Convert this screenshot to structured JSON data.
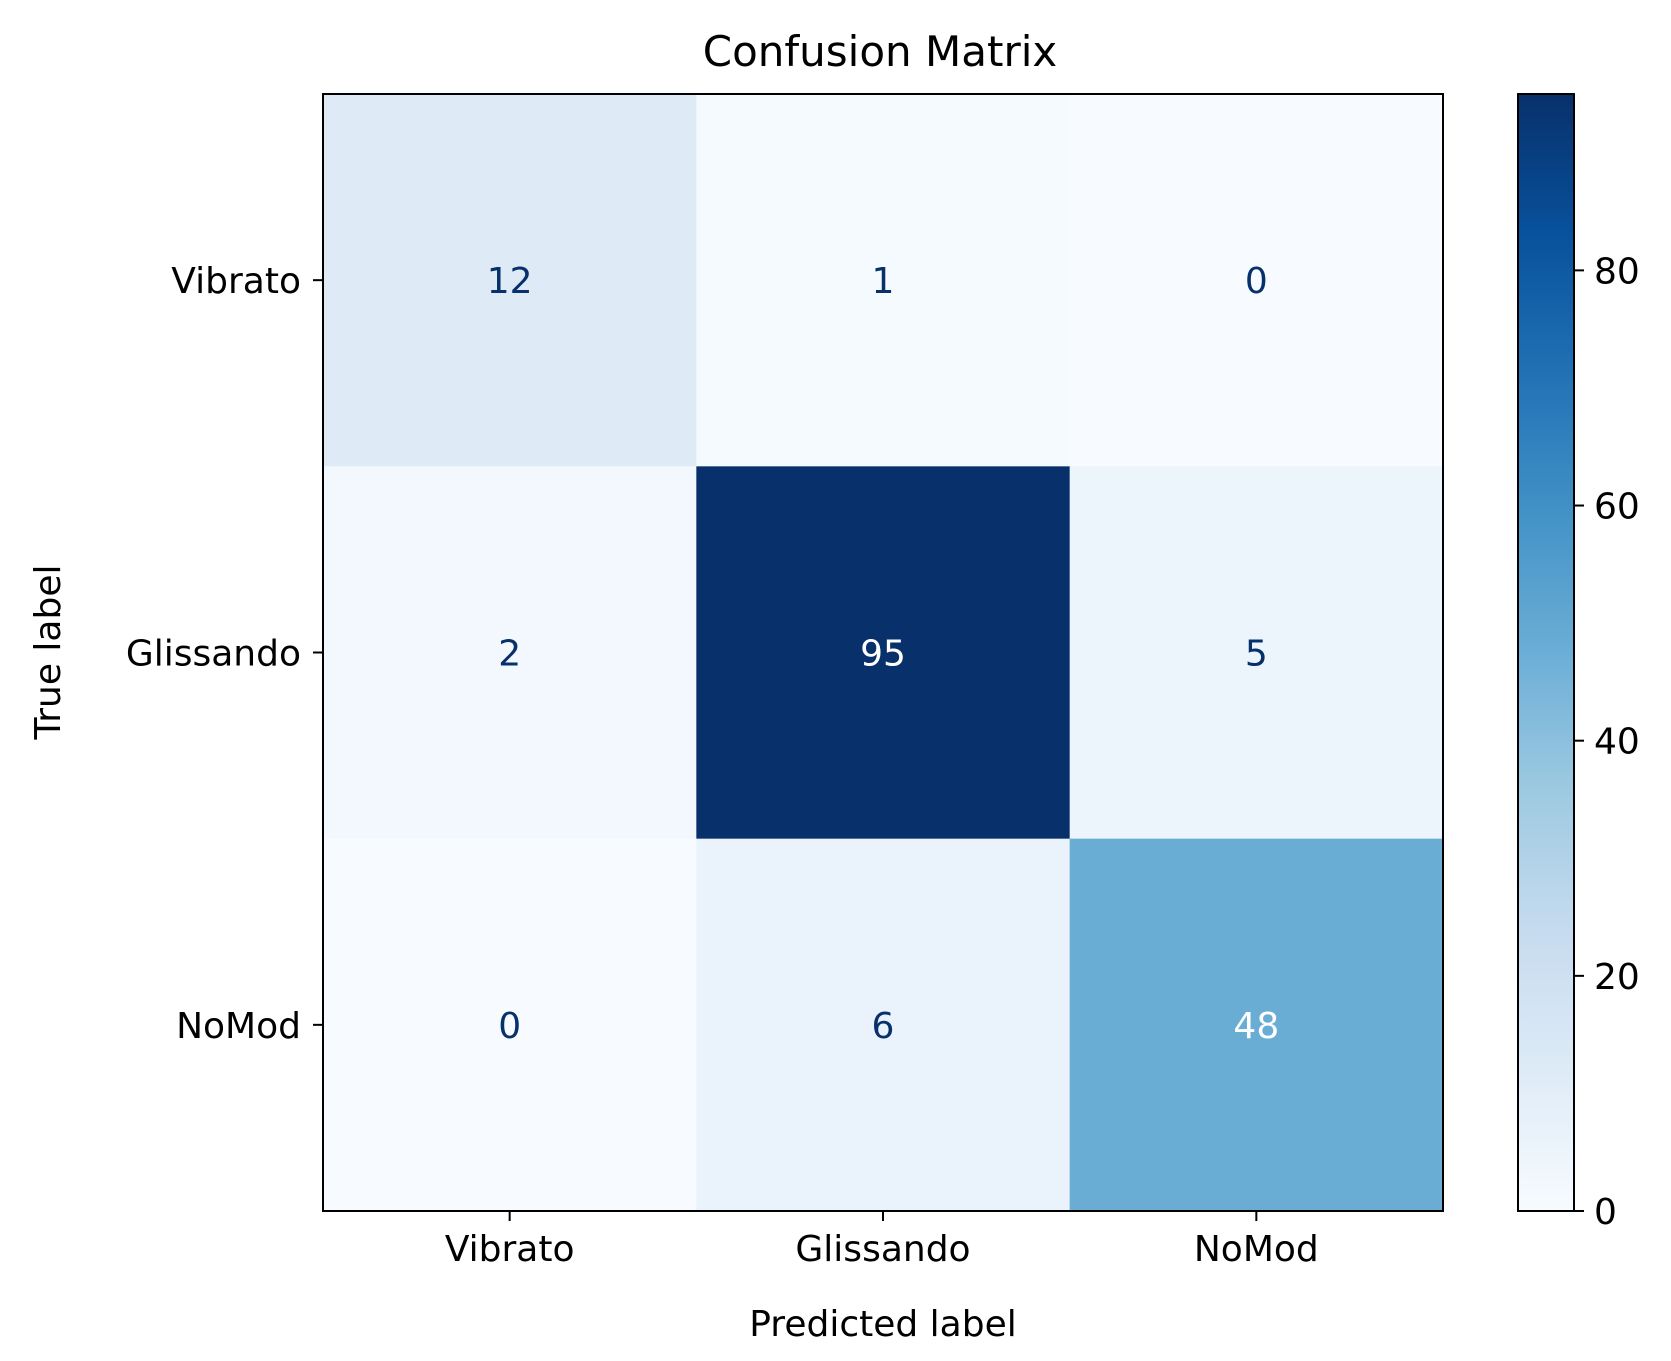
{
  "chart_data": {
    "type": "heatmap",
    "title": "Confusion Matrix",
    "xlabel": "Predicted label",
    "ylabel": "True label",
    "x_categories": [
      "Vibrato",
      "Glissando",
      "NoMod"
    ],
    "y_categories": [
      "Vibrato",
      "Glissando",
      "NoMod"
    ],
    "values": [
      [
        12,
        1,
        0
      ],
      [
        2,
        95,
        5
      ],
      [
        0,
        6,
        48
      ]
    ],
    "colormap": "Blues",
    "colorbar": {
      "range": [
        0,
        95
      ],
      "ticks": [
        0,
        20,
        40,
        60,
        80
      ],
      "tick_labels": [
        "0",
        "20",
        "40",
        "60",
        "80"
      ]
    },
    "grid": false
  }
}
